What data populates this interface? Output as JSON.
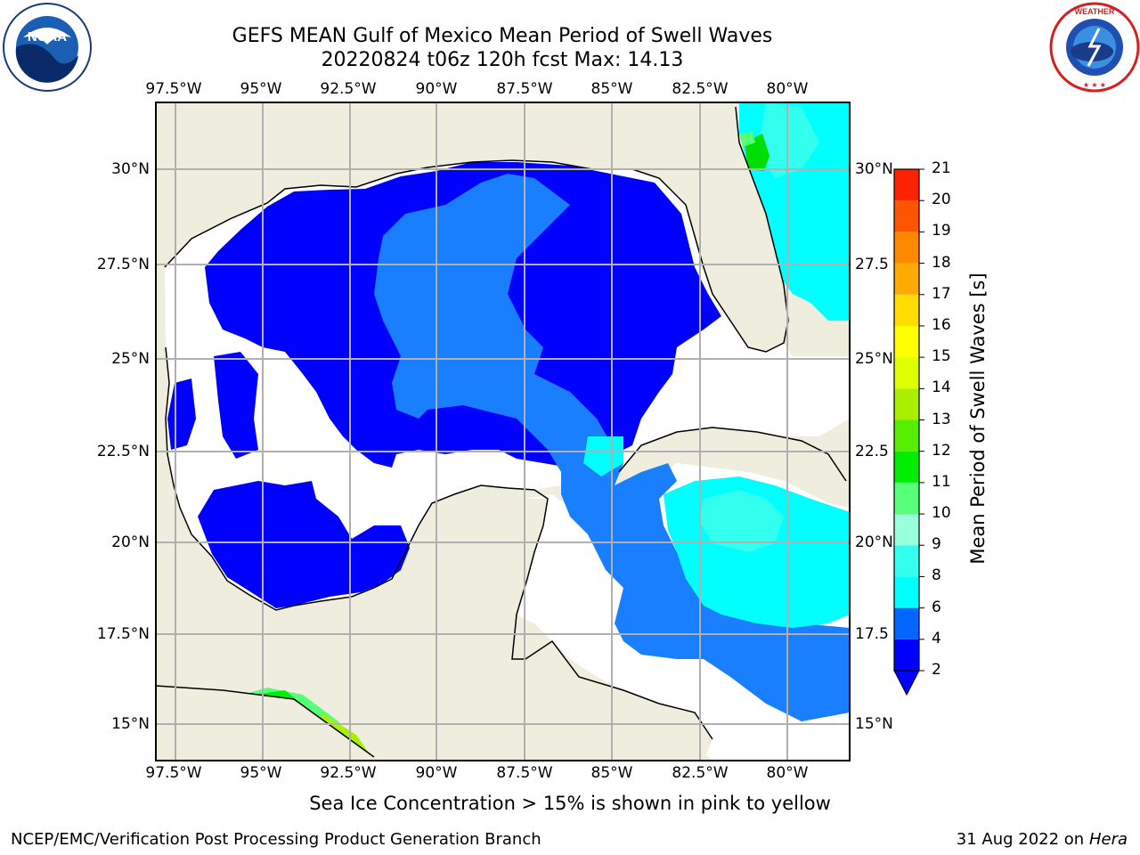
{
  "header": {
    "title_line1": "GEFS MEAN Gulf of Mexico Mean Period of Swell Waves",
    "title_line2": "20220824 t06z 120h fcst   Max: 14.13"
  },
  "logos": {
    "left": {
      "name": "NOAA",
      "ring_text": "NATIONAL OCEANIC AND ATMOSPHERIC ADMINISTRATION · U.S. DEPARTMENT OF COMMERCE"
    },
    "right": {
      "name": "NATIONAL WEATHER SERVICE"
    }
  },
  "map": {
    "lon_ticks": [
      "97.5°W",
      "95°W",
      "92.5°W",
      "90°W",
      "87.5°W",
      "85°W",
      "82.5°W",
      "80°W"
    ],
    "lat_ticks_left": [
      "30°N",
      "27.5°N",
      "25°N",
      "22.5°N",
      "20°N",
      "17.5°N",
      "15°N"
    ],
    "lat_ticks_right": [
      "30°N",
      "27.5",
      "25°N",
      "22.5",
      "20°N",
      "17.5",
      "15°N"
    ],
    "colors": {
      "land": "#efedde",
      "water_nodata": "#ffffff",
      "grid": "#b0b0b0",
      "coast": "#000000"
    }
  },
  "colorbar": {
    "label": "Mean Period of Swell Waves [s]",
    "ticks": [
      "2",
      "4",
      "6",
      "8",
      "9",
      "10",
      "11",
      "12",
      "13",
      "14",
      "15",
      "16",
      "17",
      "18",
      "19",
      "20",
      "21"
    ],
    "colors": [
      "#0000ff",
      "#0066ff",
      "#00ffff",
      "#33ffee",
      "#99ffdd",
      "#55ff77",
      "#00ee00",
      "#55ee00",
      "#aaee00",
      "#ddff00",
      "#ffff00",
      "#ffdd00",
      "#ffaa00",
      "#ff8800",
      "#ff5500",
      "#ff2200"
    ]
  },
  "notes": {
    "ice": "Sea Ice Concentration > 15% is shown in pink to yellow"
  },
  "footer": {
    "left": "NCEP/EMC/Verification Post Processing Product Generation Branch",
    "right_date": "31 Aug 2022 on",
    "right_host": "Hera"
  }
}
